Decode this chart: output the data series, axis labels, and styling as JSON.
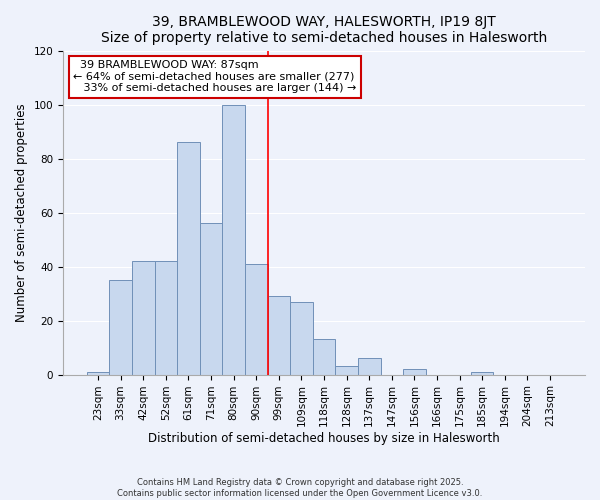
{
  "title": "39, BRAMBLEWOOD WAY, HALESWORTH, IP19 8JT",
  "subtitle": "Size of property relative to semi-detached houses in Halesworth",
  "xlabel": "Distribution of semi-detached houses by size in Halesworth",
  "ylabel": "Number of semi-detached properties",
  "bar_labels": [
    "23sqm",
    "33sqm",
    "42sqm",
    "52sqm",
    "61sqm",
    "71sqm",
    "80sqm",
    "90sqm",
    "99sqm",
    "109sqm",
    "118sqm",
    "128sqm",
    "137sqm",
    "147sqm",
    "156sqm",
    "166sqm",
    "175sqm",
    "185sqm",
    "194sqm",
    "204sqm",
    "213sqm"
  ],
  "bar_values": [
    1,
    35,
    42,
    42,
    86,
    56,
    100,
    41,
    29,
    27,
    13,
    3,
    6,
    0,
    2,
    0,
    0,
    1,
    0,
    0,
    0
  ],
  "bar_color": "#c8d8ee",
  "bar_edge_color": "#7090b8",
  "ylim": [
    0,
    120
  ],
  "yticks": [
    0,
    20,
    40,
    60,
    80,
    100,
    120
  ],
  "property_line_label": "39 BRAMBLEWOOD WAY: 87sqm",
  "smaller_pct": "64%",
  "smaller_count": 277,
  "larger_pct": "33%",
  "larger_count": 144,
  "footer_line1": "Contains HM Land Registry data © Crown copyright and database right 2025.",
  "footer_line2": "Contains public sector information licensed under the Open Government Licence v3.0.",
  "background_color": "#eef2fb",
  "grid_color": "#ffffff",
  "title_fontsize": 10,
  "axis_label_fontsize": 8.5,
  "tick_fontsize": 7.5,
  "annotation_fontsize": 8,
  "red_line_index": 7
}
